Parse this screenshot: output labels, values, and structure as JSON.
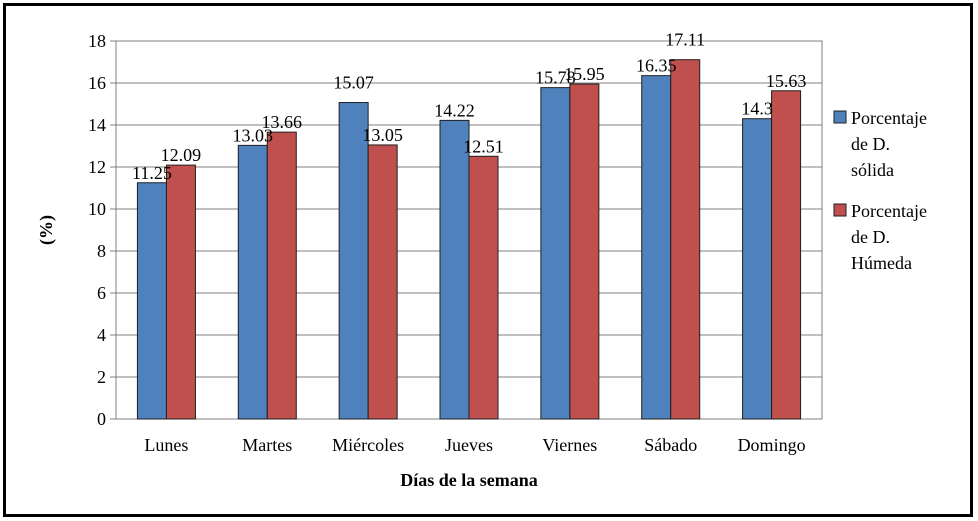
{
  "chart_data": {
    "type": "bar",
    "categories": [
      "Lunes",
      "Martes",
      "Miércoles",
      "Jueves",
      "Viernes",
      "Sábado",
      "Domingo"
    ],
    "series": [
      {
        "name": "Porcentaje de D. sólida",
        "values": [
          11.25,
          13.03,
          15.07,
          14.22,
          15.78,
          16.35,
          14.3
        ],
        "color": "#4F81BD"
      },
      {
        "name": "Porcentaje de D. Húmeda",
        "values": [
          12.09,
          13.66,
          13.05,
          12.51,
          15.95,
          17.11,
          15.63
        ],
        "color": "#C0504D"
      }
    ],
    "value_labels": {
      "series0": [
        "11.25",
        "13.03",
        "15.07",
        "14.22",
        "15.78",
        "16.35",
        "14.3"
      ],
      "series1": [
        "12.09",
        "13.66",
        "13.05",
        "12.51",
        "15.95",
        "17.11",
        "15.63"
      ]
    },
    "xlabel": "Días de la semana",
    "ylabel": "(%)",
    "ylim": [
      0,
      18
    ],
    "yticks": [
      0,
      2,
      4,
      6,
      8,
      10,
      12,
      14,
      16,
      18
    ],
    "grid": true,
    "legend": {
      "placement": "right",
      "entries": [
        {
          "lines": [
            "Porcentaje",
            "de D.",
            "sólida"
          ]
        },
        {
          "lines": [
            "Porcentaje",
            "de D.",
            "Húmeda"
          ]
        }
      ]
    }
  }
}
